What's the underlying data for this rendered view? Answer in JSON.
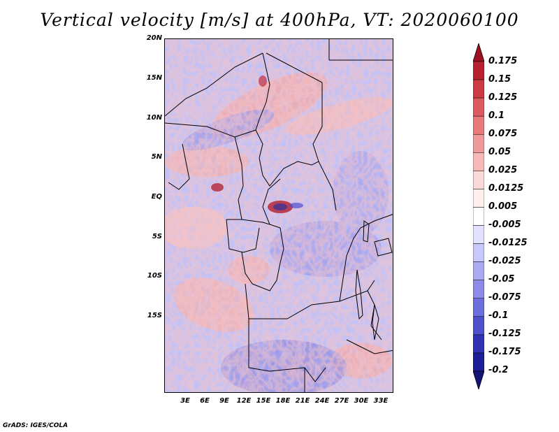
{
  "title": "Vertical velocity [m/s] at 400hPa, VT: 2020060100",
  "credit": "GrADS: IGES/COLA",
  "lat_labels": [
    "20N",
    "15N",
    "10N",
    "5N",
    "EQ",
    "5S",
    "10S",
    "15S"
  ],
  "lon_labels": [
    "3E",
    "6E",
    "9E",
    "12E",
    "15E",
    "18E",
    "21E",
    "24E",
    "27E",
    "30E",
    "33E"
  ],
  "colorbar": {
    "labels": [
      "0.175",
      "0.15",
      "0.125",
      "0.1",
      "0.075",
      "0.05",
      "0.025",
      "0.0125",
      "0.005",
      "-0.005",
      "-0.0125",
      "-0.025",
      "-0.05",
      "-0.075",
      "-0.1",
      "-0.125",
      "-0.175",
      "-0.2"
    ],
    "colors": [
      "#a01020",
      "#b82230",
      "#cc3a44",
      "#dc5a60",
      "#e87a7c",
      "#f0999a",
      "#f6b9b8",
      "#fbd9d8",
      "#fff0ef",
      "#ffffff",
      "#e2e2ff",
      "#c8c8fa",
      "#aaaaf2",
      "#8c8ce8",
      "#6e6edc",
      "#5050cc",
      "#3232b4",
      "#1e1e96",
      "#141478"
    ]
  }
}
